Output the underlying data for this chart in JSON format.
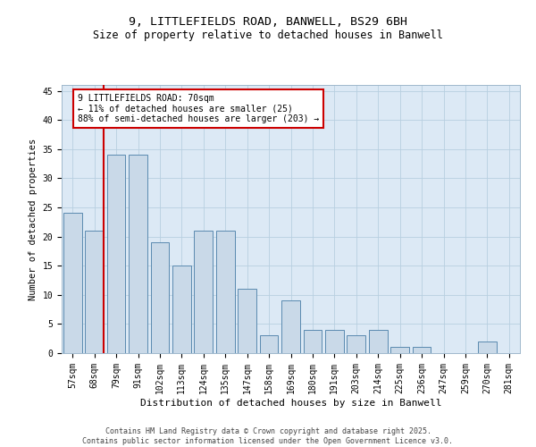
{
  "title_line1": "9, LITTLEFIELDS ROAD, BANWELL, BS29 6BH",
  "title_line2": "Size of property relative to detached houses in Banwell",
  "xlabel": "Distribution of detached houses by size in Banwell",
  "ylabel": "Number of detached properties",
  "categories": [
    "57sqm",
    "68sqm",
    "79sqm",
    "91sqm",
    "102sqm",
    "113sqm",
    "124sqm",
    "135sqm",
    "147sqm",
    "158sqm",
    "169sqm",
    "180sqm",
    "191sqm",
    "203sqm",
    "214sqm",
    "225sqm",
    "236sqm",
    "247sqm",
    "259sqm",
    "270sqm",
    "281sqm"
  ],
  "values": [
    24,
    21,
    34,
    34,
    19,
    15,
    21,
    21,
    11,
    3,
    9,
    4,
    4,
    3,
    4,
    1,
    1,
    0,
    0,
    2,
    0
  ],
  "bar_color": "#c9d9e8",
  "bar_edge_color": "#5a8ab0",
  "grid_color": "#b8cfe0",
  "bg_color": "#dce9f5",
  "vline_color": "#cc0000",
  "vline_x_index": 1,
  "annotation_text": "9 LITTLEFIELDS ROAD: 70sqm\n← 11% of detached houses are smaller (25)\n88% of semi-detached houses are larger (203) →",
  "annotation_box_color": "#cc0000",
  "footer_text": "Contains HM Land Registry data © Crown copyright and database right 2025.\nContains public sector information licensed under the Open Government Licence v3.0.",
  "ylim": [
    0,
    46
  ],
  "yticks": [
    0,
    5,
    10,
    15,
    20,
    25,
    30,
    35,
    40,
    45
  ],
  "title1_fontsize": 9.5,
  "title2_fontsize": 8.5,
  "xlabel_fontsize": 8,
  "ylabel_fontsize": 7.5,
  "tick_fontsize": 7,
  "annot_fontsize": 7,
  "footer_fontsize": 6
}
